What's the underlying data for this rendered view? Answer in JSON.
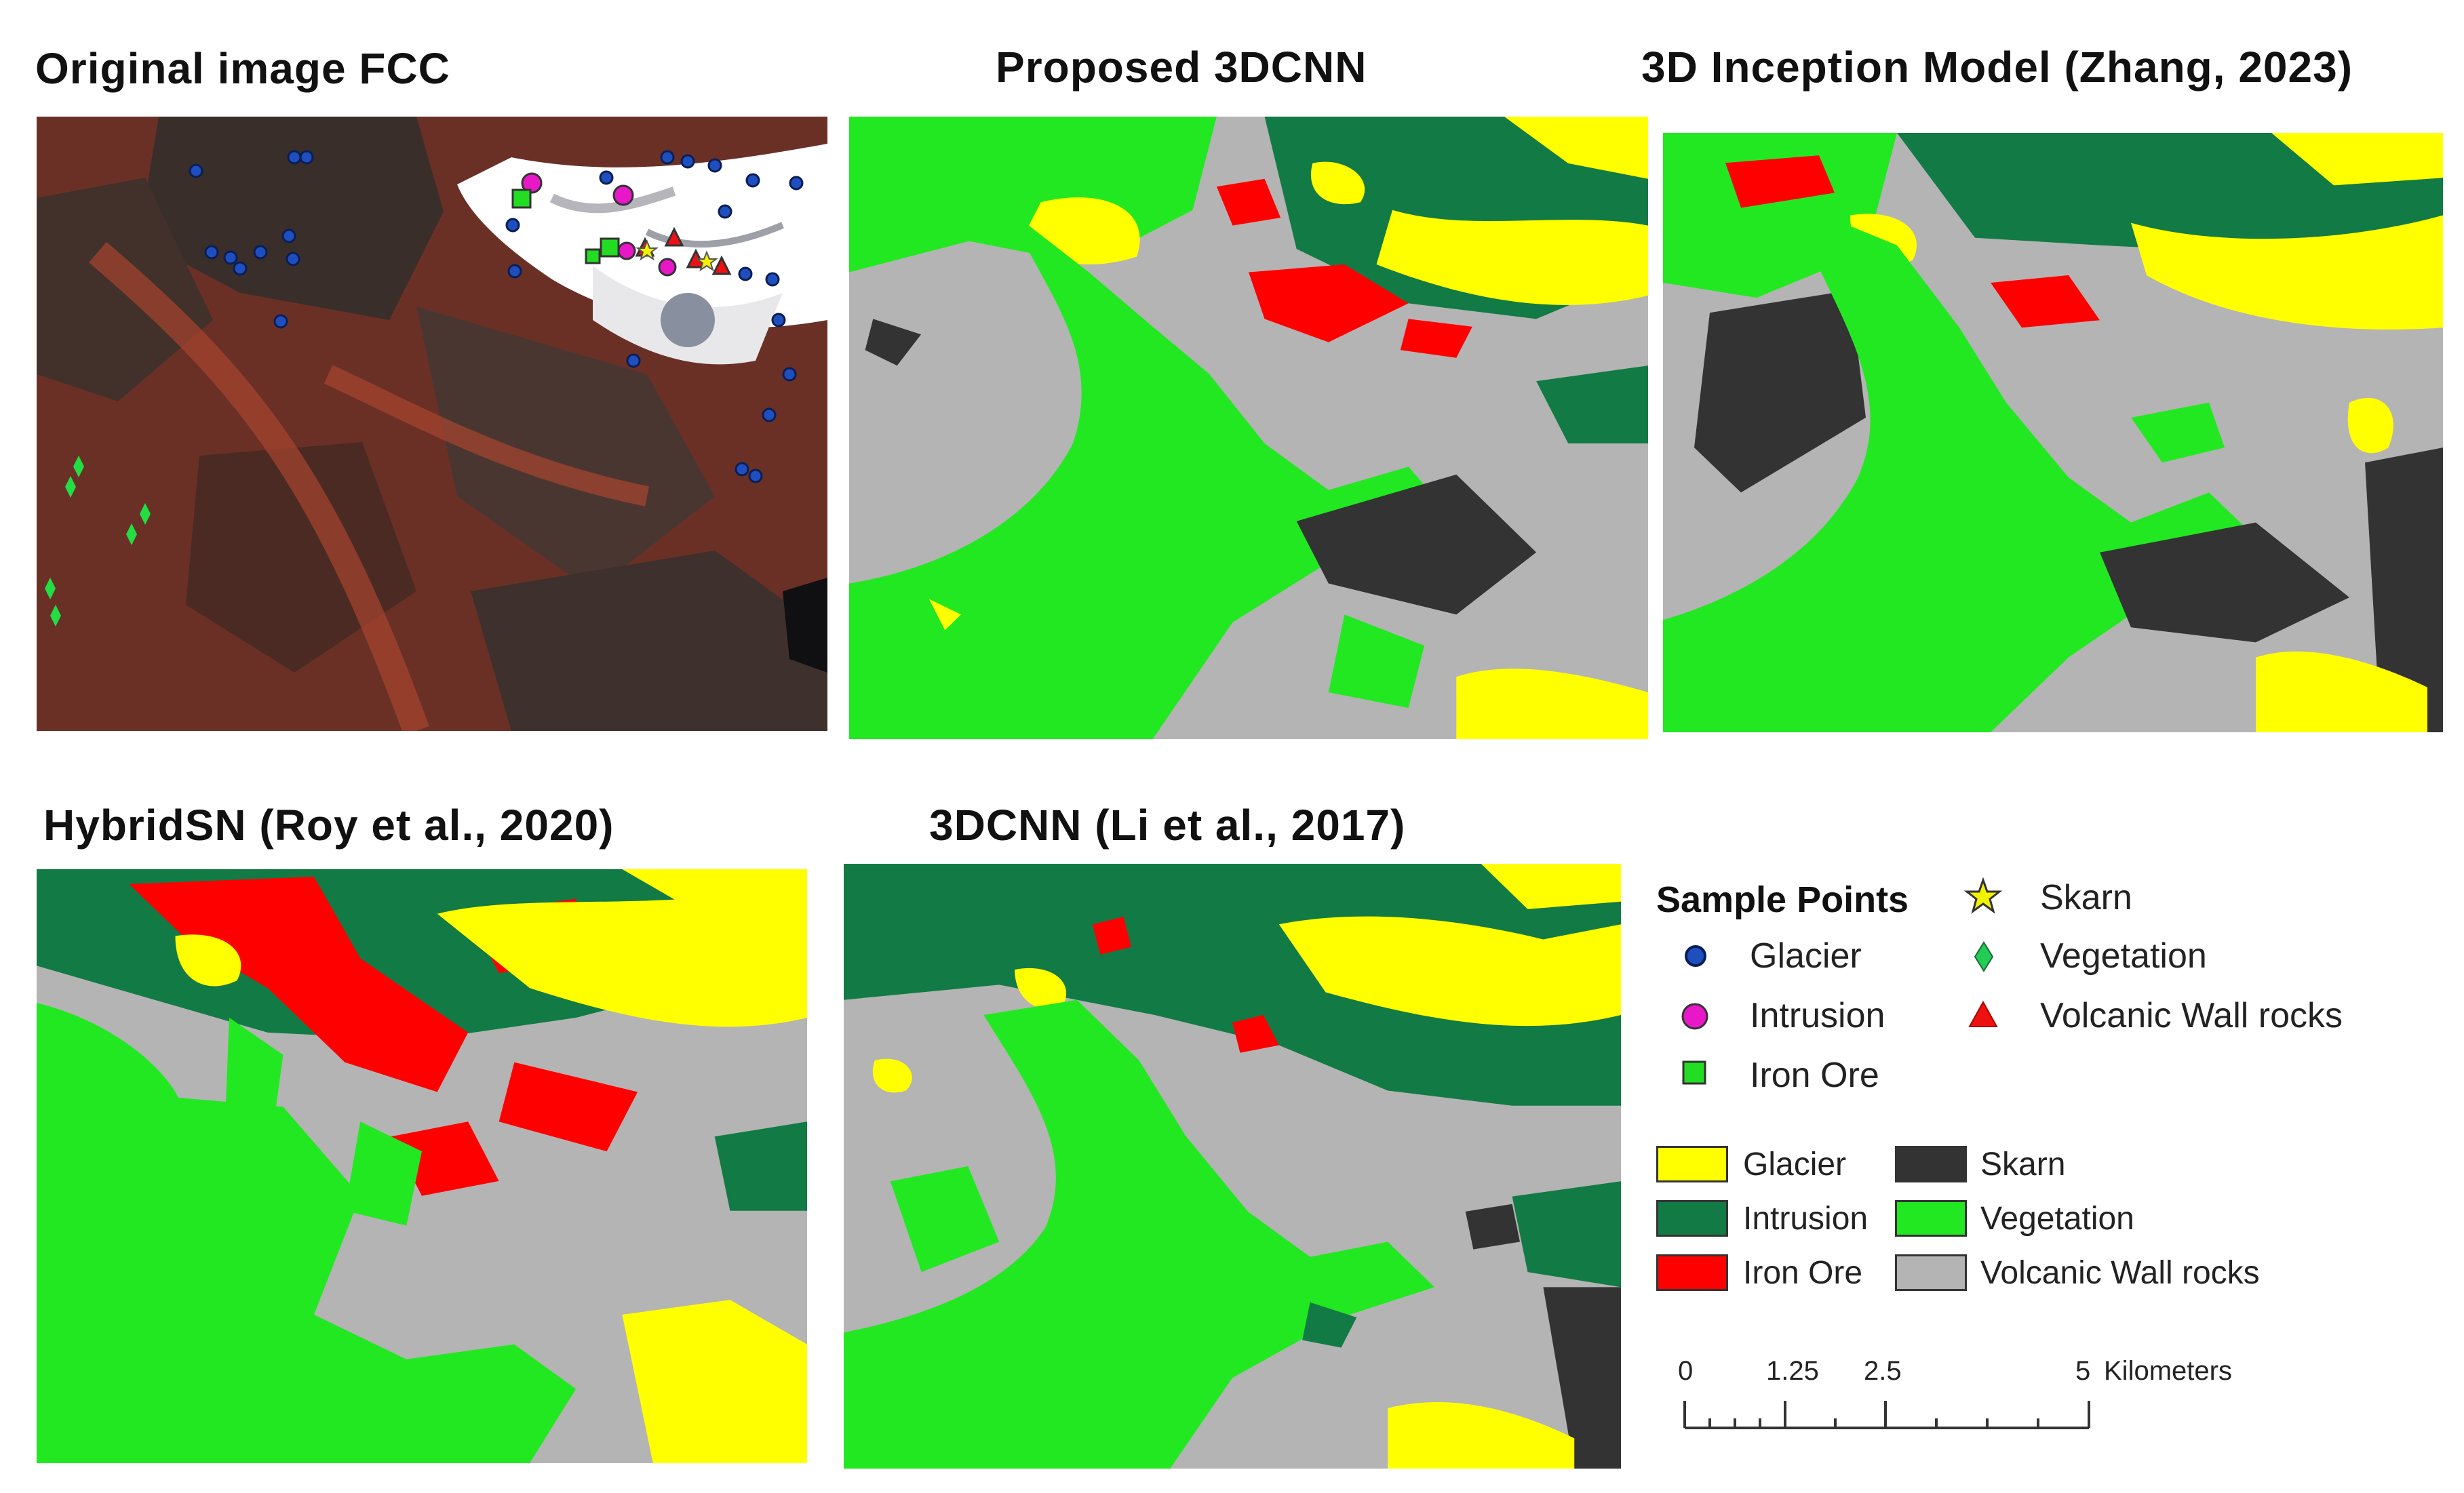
{
  "panels": [
    {
      "id": "fcc",
      "title": "Original image FCC"
    },
    {
      "id": "proposed",
      "title": "Proposed 3DCNN"
    },
    {
      "id": "inception",
      "title": "3D Inception Model (Zhang, 2023)"
    },
    {
      "id": "hybridsn",
      "title": "HybridSN (Roy et al., 2020)"
    },
    {
      "id": "li3dcnn",
      "title": "3DCNN (Li et al., 2017)"
    }
  ],
  "legend": {
    "sample_title": "Sample Points",
    "sample_points": [
      {
        "label": "Glacier",
        "symbol": "glacier-point-icon",
        "color": "#1f4fbf"
      },
      {
        "label": "Intrusion",
        "symbol": "intrusion-point-icon",
        "color": "#e818c8"
      },
      {
        "label": "Iron Ore",
        "symbol": "iron-ore-point-icon",
        "color": "#22dd22"
      },
      {
        "label": "Skarn",
        "symbol": "skarn-star-icon",
        "color": "#f2f200"
      },
      {
        "label": "Vegetation",
        "symbol": "vegetation-diamond-icon",
        "color": "#22cc55"
      },
      {
        "label": "Volcanic Wall rocks",
        "symbol": "volcanic-triangle-icon",
        "color": "#ee1111"
      }
    ],
    "classes": [
      {
        "label": "Glacier",
        "color": "#ffff00"
      },
      {
        "label": "Intrusion",
        "color": "#127a45"
      },
      {
        "label": "Iron Ore",
        "color": "#ff0000"
      },
      {
        "label": "Skarn",
        "color": "#333333"
      },
      {
        "label": "Vegetation",
        "color": "#22e822"
      },
      {
        "label": "Volcanic Wall rocks",
        "color": "#b4b4b4"
      }
    ],
    "scale": {
      "ticks": [
        "0",
        "1.25",
        "2.5",
        "5"
      ],
      "unit": "Kilometers"
    }
  }
}
